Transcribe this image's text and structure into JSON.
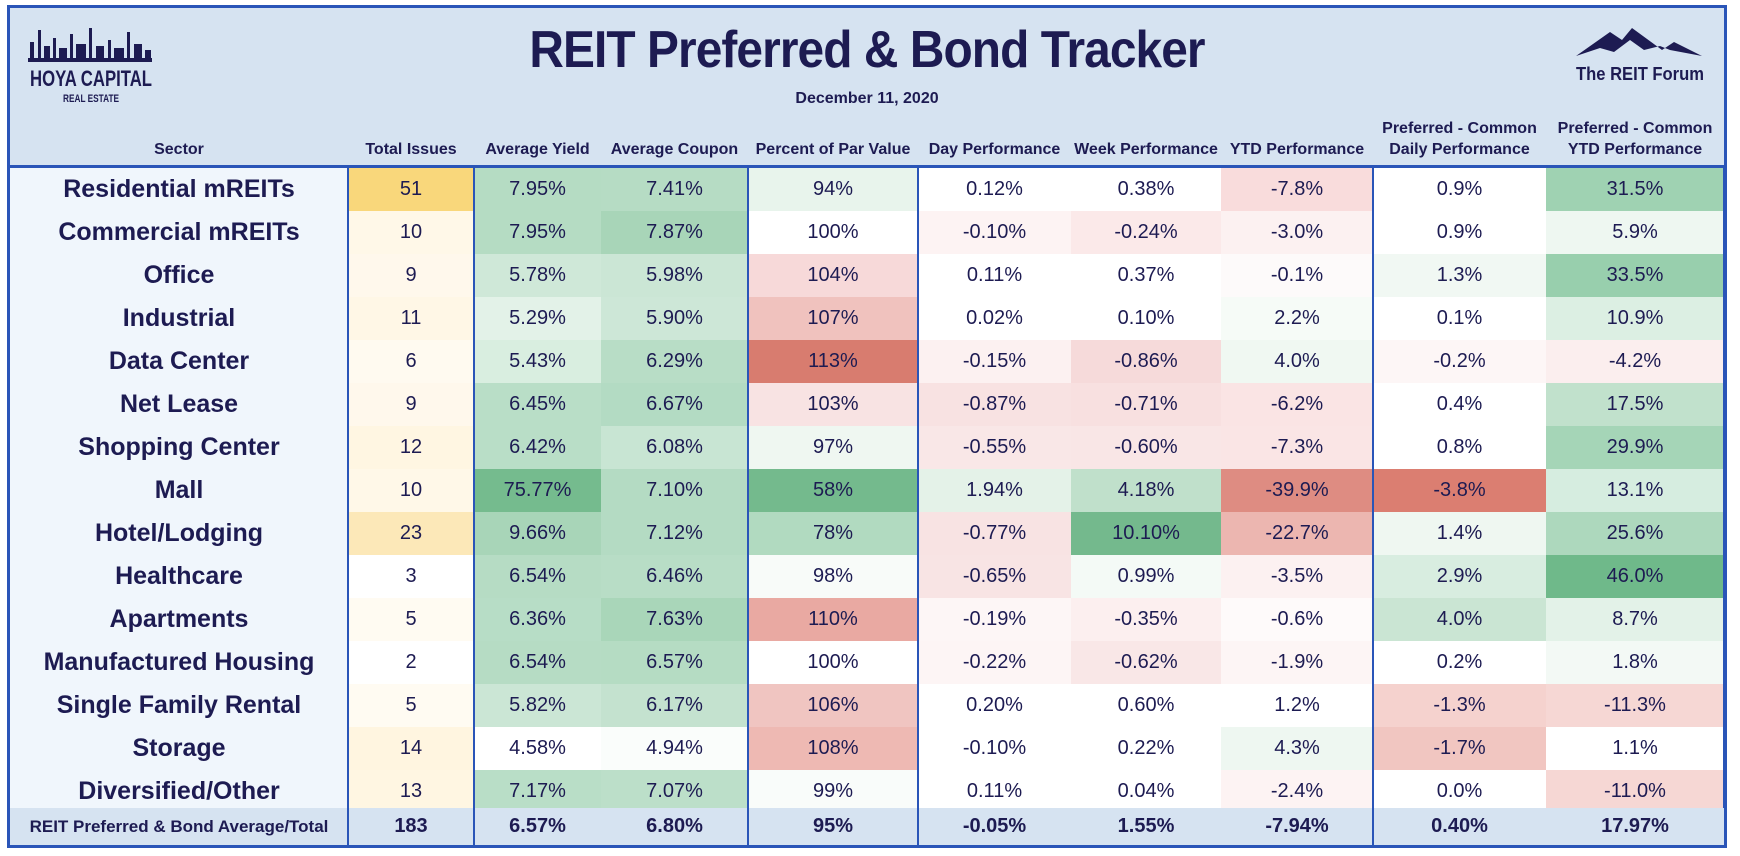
{
  "title": "REIT Preferred & Bond Tracker",
  "date": "December 11, 2020",
  "logos": {
    "left": {
      "line1": "HOYA CAPITAL",
      "line2": "REAL ESTATE"
    },
    "right": {
      "text": "The REIT Forum"
    }
  },
  "columns": [
    {
      "key": "sector",
      "label": "Sector"
    },
    {
      "key": "issues",
      "label": "Total Issues"
    },
    {
      "key": "yield",
      "label": "Average Yield"
    },
    {
      "key": "coupon",
      "label": "Average Coupon"
    },
    {
      "key": "par",
      "label": "Percent of Par Value"
    },
    {
      "key": "day",
      "label": "Day Performance"
    },
    {
      "key": "week",
      "label": "Week Performance"
    },
    {
      "key": "ytd",
      "label": "YTD Performance"
    },
    {
      "key": "pcd",
      "label1": "Preferred - Common",
      "label2": "Daily Performance"
    },
    {
      "key": "pcy",
      "label1": "Preferred - Common",
      "label2": "YTD Performance"
    }
  ],
  "rows": [
    {
      "sector": "Residential mREITs",
      "issues": "51",
      "yield": "7.95%",
      "coupon": "7.41%",
      "par": "94%",
      "day": "0.12%",
      "week": "0.38%",
      "ytd": "-7.8%",
      "pcd": "0.9%",
      "pcy": "31.5%"
    },
    {
      "sector": "Commercial mREITs",
      "issues": "10",
      "yield": "7.95%",
      "coupon": "7.87%",
      "par": "100%",
      "day": "-0.10%",
      "week": "-0.24%",
      "ytd": "-3.0%",
      "pcd": "0.9%",
      "pcy": "5.9%"
    },
    {
      "sector": "Office",
      "issues": "9",
      "yield": "5.78%",
      "coupon": "5.98%",
      "par": "104%",
      "day": "0.11%",
      "week": "0.37%",
      "ytd": "-0.1%",
      "pcd": "1.3%",
      "pcy": "33.5%"
    },
    {
      "sector": "Industrial",
      "issues": "11",
      "yield": "5.29%",
      "coupon": "5.90%",
      "par": "107%",
      "day": "0.02%",
      "week": "0.10%",
      "ytd": "2.2%",
      "pcd": "0.1%",
      "pcy": "10.9%"
    },
    {
      "sector": "Data Center",
      "issues": "6",
      "yield": "5.43%",
      "coupon": "6.29%",
      "par": "113%",
      "day": "-0.15%",
      "week": "-0.86%",
      "ytd": "4.0%",
      "pcd": "-0.2%",
      "pcy": "-4.2%"
    },
    {
      "sector": "Net Lease",
      "issues": "9",
      "yield": "6.45%",
      "coupon": "6.67%",
      "par": "103%",
      "day": "-0.87%",
      "week": "-0.71%",
      "ytd": "-6.2%",
      "pcd": "0.4%",
      "pcy": "17.5%"
    },
    {
      "sector": "Shopping Center",
      "issues": "12",
      "yield": "6.42%",
      "coupon": "6.08%",
      "par": "97%",
      "day": "-0.55%",
      "week": "-0.60%",
      "ytd": "-7.3%",
      "pcd": "0.8%",
      "pcy": "29.9%"
    },
    {
      "sector": "Mall",
      "issues": "10",
      "yield": "75.77%",
      "coupon": "7.10%",
      "par": "58%",
      "day": "1.94%",
      "week": "4.18%",
      "ytd": "-39.9%",
      "pcd": "-3.8%",
      "pcy": "13.1%"
    },
    {
      "sector": "Hotel/Lodging",
      "issues": "23",
      "yield": "9.66%",
      "coupon": "7.12%",
      "par": "78%",
      "day": "-0.77%",
      "week": "10.10%",
      "ytd": "-22.7%",
      "pcd": "1.4%",
      "pcy": "25.6%"
    },
    {
      "sector": "Healthcare",
      "issues": "3",
      "yield": "6.54%",
      "coupon": "6.46%",
      "par": "98%",
      "day": "-0.65%",
      "week": "0.99%",
      "ytd": "-3.5%",
      "pcd": "2.9%",
      "pcy": "46.0%"
    },
    {
      "sector": "Apartments",
      "issues": "5",
      "yield": "6.36%",
      "coupon": "7.63%",
      "par": "110%",
      "day": "-0.19%",
      "week": "-0.35%",
      "ytd": "-0.6%",
      "pcd": "4.0%",
      "pcy": "8.7%"
    },
    {
      "sector": "Manufactured Housing",
      "issues": "2",
      "yield": "6.54%",
      "coupon": "6.57%",
      "par": "100%",
      "day": "-0.22%",
      "week": "-0.62%",
      "ytd": "-1.9%",
      "pcd": "0.2%",
      "pcy": "1.8%"
    },
    {
      "sector": "Single Family Rental",
      "issues": "5",
      "yield": "5.82%",
      "coupon": "6.17%",
      "par": "106%",
      "day": "0.20%",
      "week": "0.60%",
      "ytd": "1.2%",
      "pcd": "-1.3%",
      "pcy": "-11.3%"
    },
    {
      "sector": "Storage",
      "issues": "14",
      "yield": "4.58%",
      "coupon": "4.94%",
      "par": "108%",
      "day": "-0.10%",
      "week": "0.22%",
      "ytd": "4.3%",
      "pcd": "-1.7%",
      "pcy": "1.1%"
    },
    {
      "sector": "Diversified/Other",
      "issues": "13",
      "yield": "7.17%",
      "coupon": "7.07%",
      "par": "99%",
      "day": "0.11%",
      "week": "0.04%",
      "ytd": "-2.4%",
      "pcd": "0.0%",
      "pcy": "-11.0%"
    }
  ],
  "totals": {
    "sector": "REIT Preferred & Bond Average/Total",
    "issues": "183",
    "yield": "6.57%",
    "coupon": "6.80%",
    "par": "95%",
    "day": "-0.05%",
    "week": "1.55%",
    "ytd": "-7.94%",
    "pcd": "0.40%",
    "pcy": "17.97%"
  },
  "colors": {
    "frame": "#2a55b8",
    "header_bg": "#d6e3f1",
    "text": "#1d1b52",
    "sector_bg": "#f0f6fc"
  },
  "cell_colors": [
    [
      "#f9d77b",
      "#b5dcc3",
      "#b6dcc4",
      "#e8f4ec",
      "#ffffff",
      "#ffffff",
      "#f9dcdc",
      "#ffffff",
      "#9fd2b2"
    ],
    [
      "#fff8e8",
      "#b5dcc3",
      "#a8d5b8",
      "#ffffff",
      "#fdf3f3",
      "#fbe9e9",
      "#fcf1f1",
      "#ffffff",
      "#eef7f1"
    ],
    [
      "#fff8ec",
      "#cfe8d8",
      "#cbe6d5",
      "#f7d9d9",
      "#ffffff",
      "#ffffff",
      "#fdfafa",
      "#f1f8f3",
      "#98cfad"
    ],
    [
      "#fff7e6",
      "#e3f2e8",
      "#cde7d7",
      "#f0c2be",
      "#ffffff",
      "#ffffff",
      "#f6fbf7",
      "#ffffff",
      "#dcefe3"
    ],
    [
      "#fffaf0",
      "#d9eee0",
      "#b8ddc6",
      "#d87c6f",
      "#fcf1f1",
      "#f6dada",
      "#f0f8f2",
      "#fdf6f6",
      "#fbeeee"
    ],
    [
      "#fff8ec",
      "#b9dec7",
      "#b3dbc3",
      "#f8e3e3",
      "#f8e2e2",
      "#f8e0e0",
      "#fae4e4",
      "#ffffff",
      "#c1e1cc"
    ],
    [
      "#fff6e2",
      "#b9dec7",
      "#c8e5d3",
      "#eff7f1",
      "#f9e7e7",
      "#f9e6e6",
      "#fae5e5",
      "#ffffff",
      "#a5d5b7"
    ],
    [
      "#fff8e8",
      "#75bb8e",
      "#b4dbc3",
      "#74ba8d",
      "#e4f2e8",
      "#c0e0cb",
      "#de8c82",
      "#db7e71",
      "#d6ede0"
    ],
    [
      "#fce8b8",
      "#a8d5b8",
      "#b4dbc3",
      "#b1dac0",
      "#f8e3e3",
      "#74b98d",
      "#ecb6b0",
      "#eff7f1",
      "#add8bd"
    ],
    [
      "#ffffff",
      "#b6dcc4",
      "#b8ddc6",
      "#f8fbf9",
      "#f8e4e4",
      "#f4faf6",
      "#fcf1f1",
      "#d8ede0",
      "#6fb98a"
    ],
    [
      "#fffbf2",
      "#b7ddc6",
      "#a9d6b9",
      "#e9a9a2",
      "#fdf6f6",
      "#fcefef",
      "#fefafa",
      "#cae5d3",
      "#e3f2e8"
    ],
    [
      "#ffffff",
      "#b6dcc4",
      "#b5dcc3",
      "#ffffff",
      "#fdf5f5",
      "#f9e7e7",
      "#fdf5f5",
      "#ffffff",
      "#f3f9f5"
    ],
    [
      "#fffbf2",
      "#cbe6d5",
      "#c4e2cf",
      "#f0c5c1",
      "#ffffff",
      "#ffffff",
      "#ffffff",
      "#f5d2ce",
      "#f6d7d4"
    ],
    [
      "#fff5e0",
      "#ffffff",
      "#fafdfb",
      "#eeb9b3",
      "#ffffff",
      "#ffffff",
      "#eef7f1",
      "#f1c6c1",
      "#ffffff"
    ],
    [
      "#fff6e2",
      "#b9dec7",
      "#bcdfc9",
      "#f9fcfa",
      "#ffffff",
      "#ffffff",
      "#fdf3f3",
      "#ffffff",
      "#f6d7d4"
    ]
  ]
}
